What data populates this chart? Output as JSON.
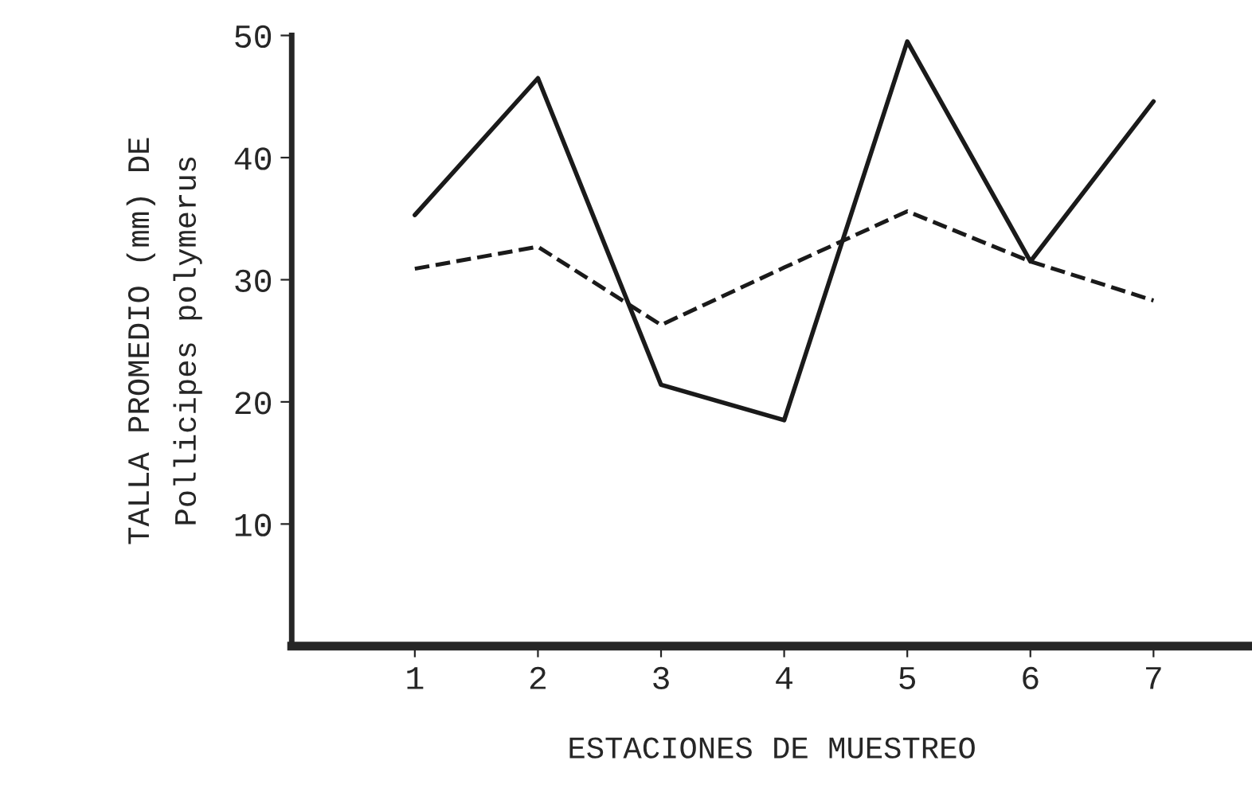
{
  "chart_data": {
    "type": "line",
    "xlabel": "ESTACIONES DE MUESTREO",
    "ylabel": "TALLA PROMEDIO (mm) DE\nPollicipes polymerus",
    "x": [
      1,
      2,
      3,
      4,
      5,
      6,
      7
    ],
    "series": [
      {
        "color": "#1a1a1a",
        "line_style": "solid",
        "values": [
          35.3,
          46.5,
          21.4,
          18.5,
          49.5,
          31.5,
          44.6
        ]
      },
      {
        "color": "#1a1a1a",
        "line_style": "dashed",
        "values": [
          30.9,
          32.7,
          26.3,
          31,
          35.6,
          31.5,
          28.3
        ]
      }
    ],
    "xlim": [
      0,
      7.8
    ],
    "xticks": [
      1,
      2,
      3,
      4,
      5,
      6,
      7
    ],
    "ylim": [
      0,
      50
    ],
    "yticks": [
      10,
      20,
      30,
      40,
      50
    ],
    "grid": false,
    "legend": false,
    "marker": "none"
  }
}
